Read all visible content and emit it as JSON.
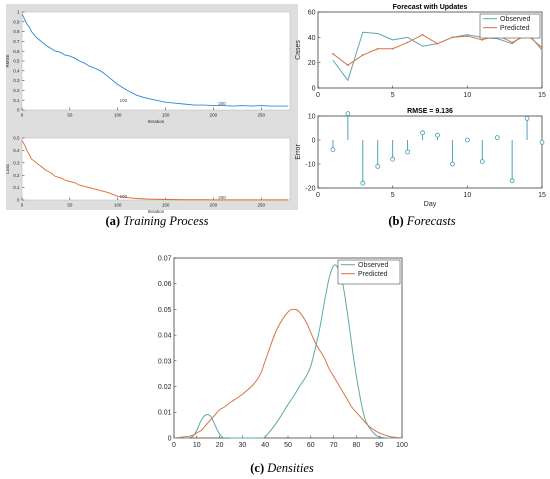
{
  "captions": {
    "a": {
      "label": "(a)",
      "text": "Training Process"
    },
    "b": {
      "label": "(b)",
      "text": "Forecasts"
    },
    "c": {
      "label": "(c)",
      "text": "Densities"
    }
  },
  "colors": {
    "observed": "#5aaaa9",
    "predicted": "#d9744a",
    "rmse_train": "#2f86d6",
    "loss_train": "#e0672e",
    "stem": "#3b9bb0"
  },
  "chart_data": [
    {
      "id": "rmse_training",
      "type": "line",
      "ylabel": "RMSE",
      "xlabel": "Iteration",
      "xlim": [
        0,
        280
      ],
      "ylim": [
        0,
        1
      ],
      "xticks": [
        0,
        50,
        100,
        150,
        200,
        250
      ],
      "yticks": [
        0,
        0.1,
        0.2,
        0.3,
        0.4,
        0.5,
        0.6,
        0.7,
        0.8,
        0.9,
        1
      ],
      "annotations": [
        {
          "text": "100",
          "x": 102,
          "y": 0.08
        },
        {
          "text": "200",
          "x": 205,
          "y": 0.05
        }
      ],
      "x": [
        0,
        3,
        5,
        8,
        10,
        15,
        20,
        25,
        30,
        35,
        40,
        45,
        50,
        55,
        60,
        65,
        70,
        75,
        80,
        85,
        90,
        95,
        100,
        110,
        120,
        130,
        140,
        150,
        160,
        170,
        180,
        190,
        200,
        210,
        220,
        230,
        240,
        250,
        260,
        270,
        278
      ],
      "y": [
        0.98,
        0.92,
        0.88,
        0.84,
        0.8,
        0.74,
        0.7,
        0.66,
        0.63,
        0.6,
        0.59,
        0.56,
        0.55,
        0.53,
        0.5,
        0.48,
        0.45,
        0.43,
        0.41,
        0.38,
        0.34,
        0.3,
        0.26,
        0.2,
        0.15,
        0.12,
        0.1,
        0.08,
        0.07,
        0.06,
        0.05,
        0.05,
        0.045,
        0.045,
        0.04,
        0.045,
        0.04,
        0.045,
        0.04,
        0.04,
        0.04
      ]
    },
    {
      "id": "loss_training",
      "type": "line",
      "ylabel": "Loss",
      "xlabel": "Iteration",
      "xlim": [
        0,
        280
      ],
      "ylim": [
        0,
        0.5
      ],
      "xticks": [
        0,
        50,
        100,
        150,
        200,
        250
      ],
      "yticks": [
        0,
        0.1,
        0.2,
        0.3,
        0.4,
        0.5
      ],
      "annotations": [
        {
          "text": "100",
          "x": 102,
          "y": 0.015
        },
        {
          "text": "200",
          "x": 205,
          "y": 0.01
        }
      ],
      "x": [
        0,
        3,
        5,
        8,
        10,
        15,
        20,
        25,
        30,
        35,
        40,
        45,
        50,
        55,
        60,
        65,
        70,
        75,
        80,
        85,
        90,
        95,
        100,
        110,
        120,
        130,
        140,
        150,
        160,
        170,
        180,
        190,
        200,
        220,
        240,
        260,
        278
      ],
      "y": [
        0.48,
        0.44,
        0.4,
        0.36,
        0.33,
        0.3,
        0.27,
        0.24,
        0.22,
        0.19,
        0.18,
        0.16,
        0.15,
        0.14,
        0.12,
        0.11,
        0.1,
        0.09,
        0.08,
        0.07,
        0.06,
        0.045,
        0.03,
        0.02,
        0.012,
        0.008,
        0.006,
        0.004,
        0.003,
        0.002,
        0.002,
        0.002,
        0.001,
        0.001,
        0.001,
        0.001,
        0.001
      ]
    },
    {
      "id": "forecast",
      "type": "line",
      "title": "Forecast with Updates",
      "ylabel": "Cases",
      "xlim": [
        0,
        15
      ],
      "ylim": [
        0,
        60
      ],
      "xticks": [
        0,
        5,
        10,
        15
      ],
      "yticks": [
        0,
        20,
        40,
        60
      ],
      "legend": {
        "position": "top-right",
        "entries": [
          "Observed",
          "Predicted"
        ]
      },
      "x": [
        1,
        2,
        3,
        4,
        5,
        6,
        7,
        8,
        9,
        10,
        11,
        12,
        13,
        14,
        15
      ],
      "series": [
        {
          "name": "Observed",
          "values": [
            22,
            6,
            44,
            43,
            38,
            40,
            33,
            35,
            40,
            42,
            40,
            39,
            35,
            44,
            30
          ]
        },
        {
          "name": "Predicted",
          "values": [
            27,
            18,
            26,
            31,
            31,
            36,
            42,
            35,
            40,
            41,
            38,
            42,
            36,
            42,
            32
          ]
        }
      ]
    },
    {
      "id": "forecast_error",
      "type": "stem",
      "title": "RMSE = 9.136",
      "ylabel": "Error",
      "xlabel": "Day",
      "xlim": [
        0,
        15
      ],
      "ylim": [
        -20,
        10
      ],
      "xticks": [
        0,
        5,
        10,
        15
      ],
      "yticks": [
        -20,
        -10,
        0,
        10
      ],
      "x": [
        1,
        2,
        3,
        4,
        5,
        6,
        7,
        8,
        9,
        10,
        11,
        12,
        13,
        14,
        15
      ],
      "values": [
        -4,
        11,
        -18,
        -11,
        -8,
        -5,
        3,
        2,
        -10,
        0,
        -9,
        1,
        -17,
        9,
        -1
      ]
    },
    {
      "id": "densities",
      "type": "line",
      "xlim": [
        0,
        100
      ],
      "ylim": [
        0,
        0.07
      ],
      "xticks": [
        0,
        10,
        20,
        30,
        40,
        50,
        60,
        70,
        80,
        90,
        100
      ],
      "yticks": [
        0,
        0.01,
        0.02,
        0.03,
        0.04,
        0.05,
        0.06,
        0.07
      ],
      "legend": {
        "position": "top-right",
        "entries": [
          "Observed",
          "Predicted"
        ]
      },
      "x": [
        0,
        5,
        8,
        10,
        12,
        14,
        16,
        18,
        20,
        22,
        25,
        30,
        35,
        38,
        40,
        45,
        50,
        53,
        55,
        58,
        60,
        62,
        64,
        66,
        68,
        70,
        72,
        74,
        76,
        78,
        80,
        83,
        85,
        88,
        90,
        93,
        95,
        100
      ],
      "series": [
        {
          "name": "Observed",
          "values": [
            0,
            0,
            0.0005,
            0.003,
            0.007,
            0.009,
            0.0085,
            0.005,
            0.0015,
            0,
            0,
            0,
            0,
            0,
            0.0005,
            0.006,
            0.013,
            0.017,
            0.02,
            0.024,
            0.028,
            0.035,
            0.043,
            0.053,
            0.062,
            0.067,
            0.066,
            0.06,
            0.049,
            0.036,
            0.024,
            0.01,
            0.005,
            0.0015,
            0.0005,
            0,
            0,
            0
          ]
        },
        {
          "name": "Predicted",
          "values": [
            0,
            0.0005,
            0.001,
            0.002,
            0.003,
            0.005,
            0.007,
            0.009,
            0.011,
            0.012,
            0.014,
            0.017,
            0.021,
            0.025,
            0.03,
            0.042,
            0.049,
            0.05,
            0.049,
            0.045,
            0.041,
            0.037,
            0.034,
            0.031,
            0.027,
            0.024,
            0.021,
            0.018,
            0.015,
            0.012,
            0.01,
            0.007,
            0.005,
            0.003,
            0.002,
            0.001,
            0.0005,
            0
          ]
        }
      ]
    }
  ]
}
